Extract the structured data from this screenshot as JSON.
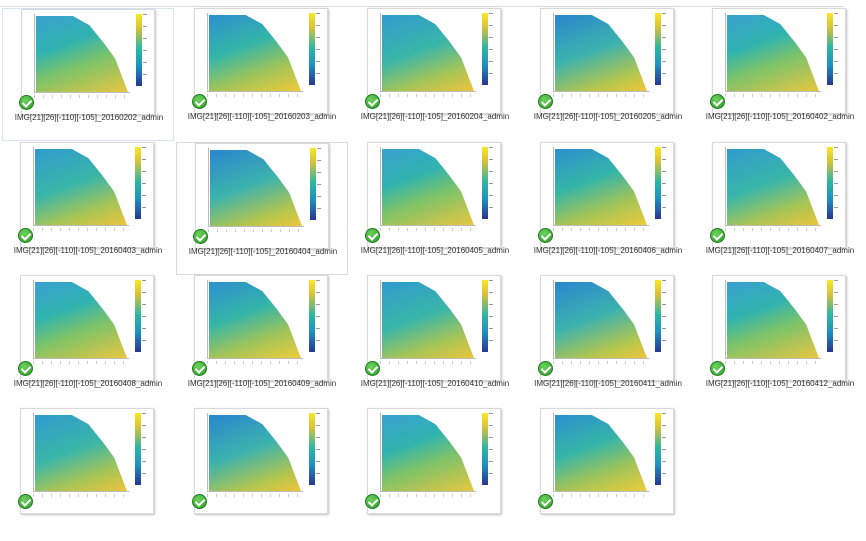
{
  "window": {
    "view": "large-icons"
  },
  "files": [
    {
      "name": "IMG[21][26][-110][-105]_20160202_admin",
      "status": "synced"
    },
    {
      "name": "IMG[21][26][-110][-105]_20160203_admin",
      "status": "synced"
    },
    {
      "name": "IMG[21][26][-110][-105]_20160204_admin",
      "status": "synced"
    },
    {
      "name": "IMG[21][26][-110][-105]_20160205_admin",
      "status": "synced"
    },
    {
      "name": "IMG[21][26][-110][-105]_20160402_admin",
      "status": "synced"
    },
    {
      "name": "IMG[21][26][-110][-105]_20160403_admin",
      "status": "synced"
    },
    {
      "name": "IMG[21][26][-110][-105]_20160404_admin",
      "status": "synced"
    },
    {
      "name": "IMG[21][26][-110][-105]_20160405_admin",
      "status": "synced"
    },
    {
      "name": "IMG[21][26][-110][-105]_20160406_admin",
      "status": "synced"
    },
    {
      "name": "IMG[21][26][-110][-105]_20160407_admin",
      "status": "synced"
    },
    {
      "name": "IMG[21][26][-110][-105]_20160408_admin",
      "status": "synced"
    },
    {
      "name": "IMG[21][26][-110][-105]_20160409_admin",
      "status": "synced"
    },
    {
      "name": "IMG[21][26][-110][-105]_20160410_admin",
      "status": "synced"
    },
    {
      "name": "IMG[21][26][-110][-105]_20160411_admin",
      "status": "synced"
    },
    {
      "name": "IMG[21][26][-110][-105]_20160412_admin",
      "status": "synced"
    },
    {
      "name": "",
      "status": "synced"
    },
    {
      "name": "",
      "status": "synced"
    },
    {
      "name": "",
      "status": "synced"
    },
    {
      "name": "",
      "status": "synced"
    }
  ],
  "selected_index": 6,
  "colors": {
    "check": "#2e9b2b",
    "selection_border": "#d9d9d9"
  }
}
